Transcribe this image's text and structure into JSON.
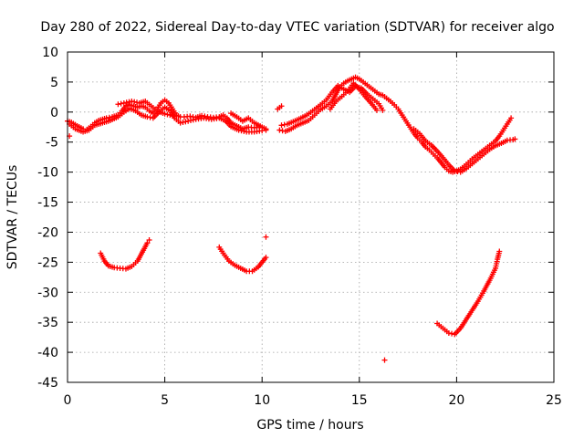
{
  "chart_data": {
    "type": "scatter",
    "title": "Day 280 of 2022, Sidereal Day-to-day VTEC variation (SDTVAR) for receiver algo",
    "xlabel": "GPS time / hours",
    "ylabel": "SDTVAR / TECUs",
    "xlim": [
      0,
      25
    ],
    "ylim": [
      -45,
      10
    ],
    "xticks": [
      0,
      5,
      10,
      15,
      20,
      25
    ],
    "yticks": [
      10,
      5,
      0,
      -5,
      -10,
      -15,
      -20,
      -25,
      -30,
      -35,
      -40,
      -45
    ],
    "grid": true,
    "marker": "+",
    "series": [
      {
        "name": "SDTVAR",
        "color": "#ff0000",
        "segments": [
          [
            [
              0,
              -1.5
            ],
            [
              0.2,
              -1.7
            ],
            [
              0.5,
              -2.3
            ],
            [
              0.8,
              -2.8
            ],
            [
              1.0,
              -2.9
            ],
            [
              1.2,
              -2.4
            ],
            [
              1.4,
              -1.8
            ],
            [
              1.6,
              -1.4
            ],
            [
              1.8,
              -1.2
            ],
            [
              2.0,
              -1.0
            ],
            [
              2.3,
              -0.8
            ],
            [
              2.6,
              -0.5
            ],
            [
              2.8,
              0.2
            ],
            [
              3.0,
              1.0
            ],
            [
              3.2,
              1.2
            ],
            [
              3.4,
              1.0
            ],
            [
              3.6,
              0.8
            ],
            [
              3.8,
              1.0
            ],
            [
              4.0,
              0.8
            ],
            [
              4.2,
              0.2
            ],
            [
              4.4,
              -0.2
            ],
            [
              4.6,
              0.5
            ],
            [
              4.8,
              1.5
            ],
            [
              5.0,
              2.0
            ],
            [
              5.2,
              1.5
            ],
            [
              5.4,
              0.5
            ],
            [
              5.6,
              -0.5
            ],
            [
              5.8,
              -0.8
            ],
            [
              6.0,
              -0.8
            ],
            [
              6.3,
              -0.7
            ],
            [
              6.6,
              -0.9
            ],
            [
              6.9,
              -0.6
            ],
            [
              7.2,
              -0.8
            ],
            [
              7.5,
              -0.9
            ],
            [
              7.8,
              -0.8
            ],
            [
              8.0,
              -0.5
            ],
            [
              8.2,
              -1.0
            ],
            [
              8.4,
              -1.8
            ],
            [
              8.7,
              -2.3
            ],
            [
              9.0,
              -2.8
            ],
            [
              9.3,
              -2.5
            ],
            [
              9.6,
              -2.6
            ],
            [
              10.0,
              -2.5
            ],
            [
              10.2,
              -2.8
            ]
          ],
          [
            [
              0.1,
              -2.0
            ],
            [
              0.4,
              -2.8
            ],
            [
              0.8,
              -3.3
            ],
            [
              1.1,
              -3.0
            ],
            [
              1.4,
              -2.2
            ],
            [
              1.8,
              -1.8
            ],
            [
              2.2,
              -1.4
            ],
            [
              2.6,
              -0.8
            ],
            [
              2.9,
              0.0
            ],
            [
              3.2,
              0.6
            ],
            [
              3.5,
              0.2
            ],
            [
              3.8,
              -0.5
            ],
            [
              4.1,
              -0.8
            ],
            [
              4.4,
              -1.0
            ],
            [
              4.7,
              0.0
            ],
            [
              5.0,
              0.8
            ],
            [
              5.3,
              0.2
            ],
            [
              5.5,
              -1.0
            ],
            [
              5.8,
              -1.8
            ],
            [
              6.2,
              -1.5
            ],
            [
              6.6,
              -1.2
            ],
            [
              7.0,
              -1.0
            ],
            [
              7.4,
              -1.2
            ],
            [
              7.8,
              -1.0
            ],
            [
              8.1,
              -1.4
            ],
            [
              8.4,
              -2.4
            ],
            [
              8.8,
              -3.0
            ],
            [
              9.2,
              -3.3
            ],
            [
              9.6,
              -3.3
            ],
            [
              10.0,
              -3.1
            ],
            [
              10.2,
              -3.0
            ]
          ],
          [
            [
              2.6,
              1.3
            ],
            [
              2.9,
              1.5
            ],
            [
              3.3,
              1.8
            ],
            [
              3.7,
              1.5
            ],
            [
              4.0,
              1.8
            ],
            [
              4.3,
              1.0
            ],
            [
              4.6,
              0.2
            ],
            [
              5.0,
              -0.3
            ],
            [
              5.4,
              -0.6
            ]
          ],
          [
            [
              8.4,
              -0.2
            ],
            [
              8.7,
              -0.8
            ],
            [
              9.0,
              -1.5
            ],
            [
              9.3,
              -1.0
            ],
            [
              9.6,
              -1.8
            ],
            [
              9.9,
              -2.3
            ]
          ],
          [
            [
              10.8,
              0.5
            ],
            [
              11.0,
              1.0
            ]
          ],
          [
            [
              10.9,
              -3.0
            ],
            [
              11.2,
              -3.2
            ],
            [
              11.5,
              -2.8
            ],
            [
              11.8,
              -2.2
            ],
            [
              12.1,
              -1.8
            ],
            [
              12.4,
              -1.4
            ],
            [
              12.7,
              -0.5
            ],
            [
              13.0,
              0.4
            ],
            [
              13.3,
              1.0
            ],
            [
              13.6,
              1.8
            ],
            [
              13.8,
              3.0
            ],
            [
              14.0,
              4.2
            ],
            [
              14.2,
              4.8
            ],
            [
              14.4,
              5.2
            ],
            [
              14.6,
              5.5
            ],
            [
              14.8,
              5.8
            ],
            [
              15.0,
              5.5
            ],
            [
              15.2,
              5.0
            ],
            [
              15.4,
              4.5
            ],
            [
              15.6,
              4.0
            ],
            [
              15.8,
              3.5
            ],
            [
              16.0,
              3.0
            ],
            [
              16.2,
              2.8
            ],
            [
              16.4,
              2.3
            ],
            [
              16.6,
              1.8
            ],
            [
              16.8,
              1.2
            ],
            [
              17.0,
              0.5
            ],
            [
              17.2,
              -0.5
            ],
            [
              17.4,
              -1.5
            ],
            [
              17.6,
              -2.5
            ],
            [
              17.8,
              -3.5
            ],
            [
              18.0,
              -4.3
            ],
            [
              18.2,
              -5.0
            ],
            [
              18.4,
              -5.8
            ],
            [
              18.6,
              -6.3
            ],
            [
              18.8,
              -7.0
            ],
            [
              19.0,
              -7.6
            ],
            [
              19.2,
              -8.4
            ],
            [
              19.4,
              -9.2
            ],
            [
              19.6,
              -9.8
            ],
            [
              19.8,
              -10.0
            ],
            [
              20.0,
              -9.8
            ],
            [
              20.2,
              -9.5
            ],
            [
              20.4,
              -9.0
            ],
            [
              20.6,
              -8.4
            ],
            [
              20.8,
              -7.8
            ],
            [
              21.0,
              -7.3
            ],
            [
              21.2,
              -6.8
            ],
            [
              21.4,
              -6.3
            ],
            [
              21.6,
              -5.8
            ],
            [
              21.8,
              -5.3
            ],
            [
              22.0,
              -4.8
            ],
            [
              22.2,
              -4.0
            ],
            [
              22.4,
              -3.0
            ],
            [
              22.6,
              -2.0
            ],
            [
              22.8,
              -1.0
            ]
          ],
          [
            [
              11.0,
              -2.2
            ],
            [
              11.3,
              -2.0
            ],
            [
              11.6,
              -1.6
            ],
            [
              12.0,
              -1.0
            ],
            [
              12.3,
              -0.5
            ],
            [
              12.6,
              0.2
            ],
            [
              13.0,
              1.2
            ],
            [
              13.3,
              2.0
            ],
            [
              13.6,
              3.3
            ],
            [
              13.9,
              4.4
            ],
            [
              14.2,
              3.8
            ],
            [
              14.5,
              3.3
            ],
            [
              14.8,
              4.3
            ],
            [
              15.1,
              4.0
            ],
            [
              15.4,
              3.0
            ],
            [
              15.7,
              2.2
            ],
            [
              16.0,
              1.4
            ],
            [
              16.2,
              0.3
            ]
          ],
          [
            [
              13.5,
              0.5
            ],
            [
              13.8,
              1.8
            ],
            [
              14.1,
              2.6
            ],
            [
              14.4,
              3.5
            ],
            [
              14.7,
              4.8
            ],
            [
              15.0,
              3.8
            ],
            [
              15.3,
              2.6
            ],
            [
              15.6,
              1.5
            ],
            [
              15.9,
              0.3
            ]
          ],
          [
            [
              17.8,
              -2.8
            ],
            [
              18.1,
              -3.6
            ],
            [
              18.4,
              -4.8
            ],
            [
              18.7,
              -5.5
            ],
            [
              19.0,
              -6.5
            ],
            [
              19.3,
              -7.6
            ],
            [
              19.6,
              -8.8
            ],
            [
              19.9,
              -9.8
            ],
            [
              20.2,
              -10.0
            ],
            [
              20.5,
              -9.4
            ],
            [
              20.8,
              -8.6
            ],
            [
              21.1,
              -7.8
            ],
            [
              21.4,
              -7.0
            ],
            [
              21.7,
              -6.2
            ],
            [
              22.0,
              -5.6
            ],
            [
              22.3,
              -5.2
            ],
            [
              22.6,
              -4.7
            ],
            [
              22.9,
              -4.6
            ]
          ],
          [
            [
              1.7,
              -23.5
            ],
            [
              1.9,
              -24.8
            ],
            [
              2.1,
              -25.6
            ],
            [
              2.4,
              -25.9
            ],
            [
              2.7,
              -26.0
            ],
            [
              3.0,
              -26.1
            ],
            [
              3.3,
              -25.7
            ],
            [
              3.6,
              -24.8
            ],
            [
              3.9,
              -23.0
            ],
            [
              4.1,
              -21.8
            ],
            [
              4.2,
              -21.3
            ]
          ],
          [
            [
              7.8,
              -22.5
            ],
            [
              8.0,
              -23.5
            ],
            [
              8.3,
              -24.8
            ],
            [
              8.6,
              -25.5
            ],
            [
              8.9,
              -26.0
            ],
            [
              9.2,
              -26.5
            ],
            [
              9.5,
              -26.5
            ],
            [
              9.8,
              -25.8
            ],
            [
              10.0,
              -25.0
            ],
            [
              10.2,
              -24.2
            ]
          ],
          [
            [
              19.0,
              -35.2
            ],
            [
              19.3,
              -36.0
            ],
            [
              19.6,
              -36.8
            ],
            [
              19.9,
              -37.0
            ],
            [
              20.2,
              -36.0
            ],
            [
              20.5,
              -34.5
            ],
            [
              20.8,
              -33.0
            ],
            [
              21.1,
              -31.5
            ],
            [
              21.4,
              -29.8
            ],
            [
              21.7,
              -28.0
            ],
            [
              22.0,
              -26.0
            ],
            [
              22.1,
              -24.5
            ],
            [
              22.2,
              -23.2
            ]
          ]
        ],
        "points": [
          [
            0.1,
            -4.0
          ],
          [
            10.2,
            -20.8
          ],
          [
            16.3,
            -41.3
          ],
          [
            23.0,
            -4.5
          ]
        ]
      }
    ]
  }
}
